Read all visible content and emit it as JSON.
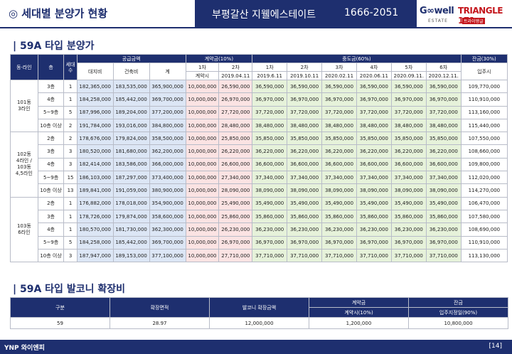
{
  "header": {
    "title": "◎ 세대별 분양가 현황",
    "project": "부평갈산 지웰에스테이트",
    "phone": "1666-2051",
    "logo1": "G∞well",
    "logo1_sub": "ESTATE",
    "logo2": "TRIANGLE 171",
    "logo2_sub": "트라이앵글"
  },
  "section1_title": "| 59A 타입 분양가",
  "table_head": {
    "dong_line": "동·라인",
    "floor": "층",
    "units": "세대수",
    "supply": "공급금액",
    "land": "대지비",
    "building": "건축비",
    "total": "계",
    "contract": "계약금(10%)",
    "c1": "1차",
    "c2": "2차",
    "c1_date": "계약시",
    "c2_date": "2019.04.11",
    "mid": "중도금(60%)",
    "m": [
      "1차",
      "2차",
      "3차",
      "4차",
      "5차",
      "6차"
    ],
    "m_dates": [
      "2019.6.11",
      "2019.10.11",
      "2020.02.11",
      "2020.06.11",
      "2020.09.11.",
      "2020.12.11."
    ],
    "balance": "잔금(30%)",
    "balance_sub": "입주시"
  },
  "groups": [
    {
      "label": "101동\n3라인",
      "rows": [
        {
          "floor": "3층",
          "units": "1",
          "land": "182,365,000",
          "building": "183,535,000",
          "total": "365,900,000",
          "c1": "10,000,000",
          "c2": "26,590,000",
          "m": [
            "36,590,000",
            "36,590,000",
            "36,590,000",
            "36,590,000",
            "36,590,000",
            "36,590,000"
          ],
          "bal": "109,770,000"
        },
        {
          "floor": "4층",
          "units": "1",
          "land": "184,258,000",
          "building": "185,442,000",
          "total": "369,700,000",
          "c1": "10,000,000",
          "c2": "26,970,000",
          "m": [
            "36,970,000",
            "36,970,000",
            "36,970,000",
            "36,970,000",
            "36,970,000",
            "36,970,000"
          ],
          "bal": "110,910,000"
        },
        {
          "floor": "5~9층",
          "units": "5",
          "land": "187,996,000",
          "building": "189,204,000",
          "total": "377,200,000",
          "c1": "10,000,000",
          "c2": "27,720,000",
          "m": [
            "37,720,000",
            "37,720,000",
            "37,720,000",
            "37,720,000",
            "37,720,000",
            "37,720,000"
          ],
          "bal": "113,160,000"
        },
        {
          "floor": "10층 이상",
          "units": "2",
          "land": "191,784,000",
          "building": "193,016,000",
          "total": "384,800,000",
          "c1": "10,000,000",
          "c2": "28,480,000",
          "m": [
            "38,480,000",
            "38,480,000",
            "38,480,000",
            "38,480,000",
            "38,480,000",
            "38,480,000"
          ],
          "bal": "115,440,000"
        }
      ]
    },
    {
      "label": "102동\n4라인 /\n103동\n4,5라인",
      "rows": [
        {
          "floor": "2층",
          "units": "2",
          "land": "178,676,000",
          "building": "179,824,000",
          "total": "358,500,000",
          "c1": "10,000,000",
          "c2": "25,850,000",
          "m": [
            "35,850,000",
            "35,850,000",
            "35,850,000",
            "35,850,000",
            "35,850,000",
            "35,850,000"
          ],
          "bal": "107,550,000"
        },
        {
          "floor": "3층",
          "units": "3",
          "land": "180,520,000",
          "building": "181,680,000",
          "total": "362,200,000",
          "c1": "10,000,000",
          "c2": "26,220,000",
          "m": [
            "36,220,000",
            "36,220,000",
            "36,220,000",
            "36,220,000",
            "36,220,000",
            "36,220,000"
          ],
          "bal": "108,660,000"
        },
        {
          "floor": "4층",
          "units": "3",
          "land": "182,414,000",
          "building": "183,586,000",
          "total": "366,000,000",
          "c1": "10,000,000",
          "c2": "26,600,000",
          "m": [
            "36,600,000",
            "36,600,000",
            "36,600,000",
            "36,600,000",
            "36,600,000",
            "36,600,000"
          ],
          "bal": "109,800,000"
        },
        {
          "floor": "5~9층",
          "units": "15",
          "land": "186,103,000",
          "building": "187,297,000",
          "total": "373,400,000",
          "c1": "10,000,000",
          "c2": "27,340,000",
          "m": [
            "37,340,000",
            "37,340,000",
            "37,340,000",
            "37,340,000",
            "37,340,000",
            "37,340,000"
          ],
          "bal": "112,020,000"
        },
        {
          "floor": "10층 이상",
          "units": "13",
          "land": "189,841,000",
          "building": "191,059,000",
          "total": "380,900,000",
          "c1": "10,000,000",
          "c2": "28,090,000",
          "m": [
            "38,090,000",
            "38,090,000",
            "38,090,000",
            "38,090,000",
            "38,090,000",
            "38,090,000"
          ],
          "bal": "114,270,000"
        }
      ]
    },
    {
      "label": "103동\n6라인",
      "rows": [
        {
          "floor": "2층",
          "units": "1",
          "land": "176,882,000",
          "building": "178,018,000",
          "total": "354,900,000",
          "c1": "10,000,000",
          "c2": "25,490,000",
          "m": [
            "35,490,000",
            "35,490,000",
            "35,490,000",
            "35,490,000",
            "35,490,000",
            "35,490,000"
          ],
          "bal": "106,470,000"
        },
        {
          "floor": "3층",
          "units": "1",
          "land": "178,726,000",
          "building": "179,874,000",
          "total": "358,600,000",
          "c1": "10,000,000",
          "c2": "25,860,000",
          "m": [
            "35,860,000",
            "35,860,000",
            "35,860,000",
            "35,860,000",
            "35,860,000",
            "35,860,000"
          ],
          "bal": "107,580,000"
        },
        {
          "floor": "4층",
          "units": "1",
          "land": "180,570,000",
          "building": "181,730,000",
          "total": "362,300,000",
          "c1": "10,000,000",
          "c2": "26,230,000",
          "m": [
            "36,230,000",
            "36,230,000",
            "36,230,000",
            "36,230,000",
            "36,230,000",
            "36,230,000"
          ],
          "bal": "108,690,000"
        },
        {
          "floor": "5~9층",
          "units": "5",
          "land": "184,258,000",
          "building": "185,442,000",
          "total": "369,700,000",
          "c1": "10,000,000",
          "c2": "26,970,000",
          "m": [
            "36,970,000",
            "36,970,000",
            "36,970,000",
            "36,970,000",
            "36,970,000",
            "36,970,000"
          ],
          "bal": "110,910,000"
        },
        {
          "floor": "10층 이상",
          "units": "3",
          "land": "187,947,000",
          "building": "189,153,000",
          "total": "377,100,000",
          "c1": "10,000,000",
          "c2": "27,710,000",
          "m": [
            "37,710,000",
            "37,710,000",
            "37,710,000",
            "37,710,000",
            "37,710,000",
            "37,710,000"
          ],
          "bal": "113,130,000"
        }
      ]
    }
  ],
  "section2_title": "| 59A 타입 발코니 확장비",
  "balcony": {
    "h_type": "구분",
    "h_area": "확장면적",
    "h_amount": "발코니 확장금액",
    "h_contract": "계약금",
    "h_contract_sub": "계약시(10%)",
    "h_balance": "잔금",
    "h_balance_sub": "입주지정일(90%)",
    "type": "59",
    "area": "28.97",
    "amount": "12,000,000",
    "contract": "1,200,000",
    "balance": "10,800,000"
  },
  "footer": {
    "logo": "YNP 와이엔피",
    "page": "[14]"
  },
  "colors": {
    "navy": "#1e2f6f",
    "blue_band": "#dce6f5",
    "pink_band": "#fbe3e3",
    "green_band": "#e6f2da"
  }
}
